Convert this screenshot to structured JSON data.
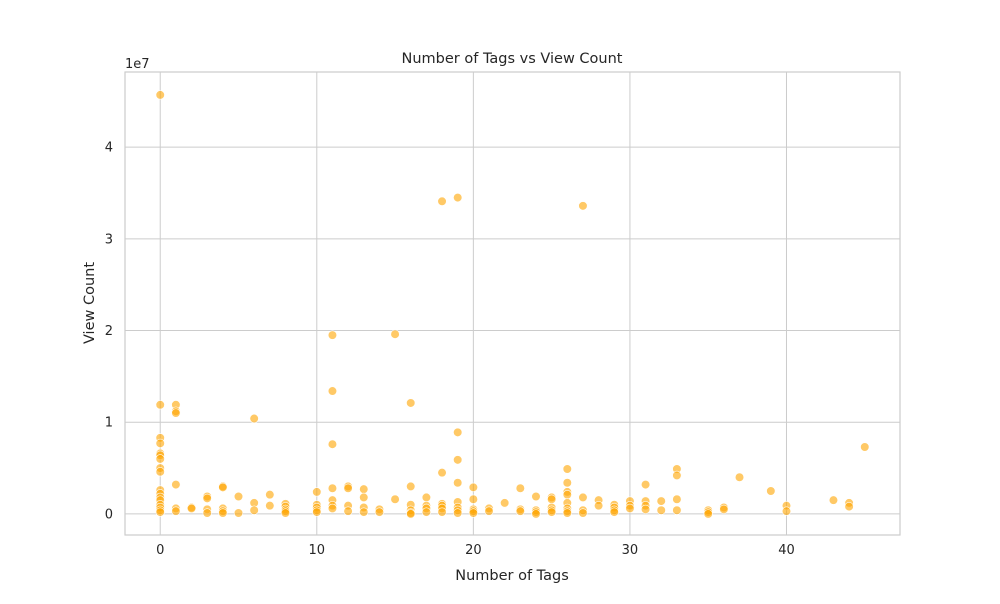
{
  "chart_data": {
    "type": "scatter",
    "title": "Number of Tags vs View Count",
    "xlabel": "Number of Tags",
    "ylabel": "View Count",
    "y_offset_text": "1e7",
    "xlim": [
      -2.25,
      47.25
    ],
    "ylim": [
      -2300000,
      48200000
    ],
    "x_ticks": [
      0,
      10,
      20,
      30,
      40
    ],
    "x_tick_labels": [
      "0",
      "10",
      "20",
      "30",
      "40"
    ],
    "y_ticks": [
      0,
      10000000,
      20000000,
      30000000,
      40000000
    ],
    "y_tick_labels": [
      "0",
      "1",
      "2",
      "3",
      "4"
    ],
    "grid": true,
    "legend": "none",
    "marker_color": "#ffa500",
    "points": [
      {
        "x": 0,
        "y": 45700000
      },
      {
        "x": 0,
        "y": 11900000
      },
      {
        "x": 0,
        "y": 8300000
      },
      {
        "x": 0,
        "y": 7700000
      },
      {
        "x": 0,
        "y": 6600000
      },
      {
        "x": 0,
        "y": 6400000
      },
      {
        "x": 0,
        "y": 6000000
      },
      {
        "x": 0,
        "y": 5000000
      },
      {
        "x": 0,
        "y": 4600000
      },
      {
        "x": 0,
        "y": 2600000
      },
      {
        "x": 0,
        "y": 2200000
      },
      {
        "x": 0,
        "y": 1800000
      },
      {
        "x": 0,
        "y": 1500000
      },
      {
        "x": 0,
        "y": 1000000
      },
      {
        "x": 0,
        "y": 700000
      },
      {
        "x": 0,
        "y": 400000
      },
      {
        "x": 0,
        "y": 200000
      },
      {
        "x": 1,
        "y": 11900000
      },
      {
        "x": 1,
        "y": 11200000
      },
      {
        "x": 1,
        "y": 11000000
      },
      {
        "x": 1,
        "y": 3200000
      },
      {
        "x": 1,
        "y": 600000
      },
      {
        "x": 1,
        "y": 300000
      },
      {
        "x": 2,
        "y": 700000
      },
      {
        "x": 2,
        "y": 600000
      },
      {
        "x": 3,
        "y": 1900000
      },
      {
        "x": 3,
        "y": 1700000
      },
      {
        "x": 3,
        "y": 500000
      },
      {
        "x": 3,
        "y": 100000
      },
      {
        "x": 4,
        "y": 3000000
      },
      {
        "x": 4,
        "y": 2900000
      },
      {
        "x": 4,
        "y": 600000
      },
      {
        "x": 4,
        "y": 300000
      },
      {
        "x": 4,
        "y": 100000
      },
      {
        "x": 5,
        "y": 1900000
      },
      {
        "x": 5,
        "y": 100000
      },
      {
        "x": 6,
        "y": 10400000
      },
      {
        "x": 6,
        "y": 1200000
      },
      {
        "x": 6,
        "y": 400000
      },
      {
        "x": 7,
        "y": 2100000
      },
      {
        "x": 7,
        "y": 900000
      },
      {
        "x": 8,
        "y": 1100000
      },
      {
        "x": 8,
        "y": 800000
      },
      {
        "x": 8,
        "y": 500000
      },
      {
        "x": 8,
        "y": 300000
      },
      {
        "x": 8,
        "y": 100000
      },
      {
        "x": 10,
        "y": 2400000
      },
      {
        "x": 10,
        "y": 1000000
      },
      {
        "x": 10,
        "y": 700000
      },
      {
        "x": 10,
        "y": 400000
      },
      {
        "x": 10,
        "y": 200000
      },
      {
        "x": 11,
        "y": 19500000
      },
      {
        "x": 11,
        "y": 13400000
      },
      {
        "x": 11,
        "y": 7600000
      },
      {
        "x": 11,
        "y": 2800000
      },
      {
        "x": 11,
        "y": 1500000
      },
      {
        "x": 11,
        "y": 900000
      },
      {
        "x": 11,
        "y": 600000
      },
      {
        "x": 12,
        "y": 3000000
      },
      {
        "x": 12,
        "y": 2800000
      },
      {
        "x": 12,
        "y": 900000
      },
      {
        "x": 12,
        "y": 300000
      },
      {
        "x": 13,
        "y": 2700000
      },
      {
        "x": 13,
        "y": 1800000
      },
      {
        "x": 13,
        "y": 700000
      },
      {
        "x": 13,
        "y": 200000
      },
      {
        "x": 14,
        "y": 500000
      },
      {
        "x": 14,
        "y": 200000
      },
      {
        "x": 15,
        "y": 19600000
      },
      {
        "x": 15,
        "y": 1600000
      },
      {
        "x": 16,
        "y": 12100000
      },
      {
        "x": 16,
        "y": 3000000
      },
      {
        "x": 16,
        "y": 1000000
      },
      {
        "x": 16,
        "y": 400000
      },
      {
        "x": 16,
        "y": 100000
      },
      {
        "x": 16,
        "y": 0
      },
      {
        "x": 17,
        "y": 1800000
      },
      {
        "x": 17,
        "y": 900000
      },
      {
        "x": 17,
        "y": 600000
      },
      {
        "x": 17,
        "y": 200000
      },
      {
        "x": 18,
        "y": 34100000
      },
      {
        "x": 18,
        "y": 4500000
      },
      {
        "x": 18,
        "y": 1100000
      },
      {
        "x": 18,
        "y": 900000
      },
      {
        "x": 18,
        "y": 600000
      },
      {
        "x": 18,
        "y": 200000
      },
      {
        "x": 19,
        "y": 34500000
      },
      {
        "x": 19,
        "y": 8900000
      },
      {
        "x": 19,
        "y": 5900000
      },
      {
        "x": 19,
        "y": 3400000
      },
      {
        "x": 19,
        "y": 1300000
      },
      {
        "x": 19,
        "y": 700000
      },
      {
        "x": 19,
        "y": 400000
      },
      {
        "x": 19,
        "y": 100000
      },
      {
        "x": 20,
        "y": 2900000
      },
      {
        "x": 20,
        "y": 1600000
      },
      {
        "x": 20,
        "y": 500000
      },
      {
        "x": 20,
        "y": 300000
      },
      {
        "x": 20,
        "y": 100000
      },
      {
        "x": 21,
        "y": 600000
      },
      {
        "x": 21,
        "y": 300000
      },
      {
        "x": 22,
        "y": 1200000
      },
      {
        "x": 23,
        "y": 2800000
      },
      {
        "x": 23,
        "y": 500000
      },
      {
        "x": 23,
        "y": 300000
      },
      {
        "x": 24,
        "y": 1900000
      },
      {
        "x": 24,
        "y": 400000
      },
      {
        "x": 24,
        "y": 200000
      },
      {
        "x": 24,
        "y": 0
      },
      {
        "x": 25,
        "y": 1800000
      },
      {
        "x": 25,
        "y": 1600000
      },
      {
        "x": 25,
        "y": 700000
      },
      {
        "x": 25,
        "y": 400000
      },
      {
        "x": 25,
        "y": 200000
      },
      {
        "x": 26,
        "y": 4900000
      },
      {
        "x": 26,
        "y": 3400000
      },
      {
        "x": 26,
        "y": 2400000
      },
      {
        "x": 26,
        "y": 2100000
      },
      {
        "x": 26,
        "y": 1200000
      },
      {
        "x": 26,
        "y": 600000
      },
      {
        "x": 26,
        "y": 300000
      },
      {
        "x": 26,
        "y": 100000
      },
      {
        "x": 27,
        "y": 33600000
      },
      {
        "x": 27,
        "y": 1800000
      },
      {
        "x": 27,
        "y": 400000
      },
      {
        "x": 27,
        "y": 100000
      },
      {
        "x": 28,
        "y": 1500000
      },
      {
        "x": 28,
        "y": 900000
      },
      {
        "x": 29,
        "y": 1000000
      },
      {
        "x": 29,
        "y": 700000
      },
      {
        "x": 29,
        "y": 400000
      },
      {
        "x": 29,
        "y": 200000
      },
      {
        "x": 30,
        "y": 1400000
      },
      {
        "x": 30,
        "y": 900000
      },
      {
        "x": 30,
        "y": 600000
      },
      {
        "x": 31,
        "y": 3200000
      },
      {
        "x": 31,
        "y": 1400000
      },
      {
        "x": 31,
        "y": 900000
      },
      {
        "x": 31,
        "y": 500000
      },
      {
        "x": 32,
        "y": 1400000
      },
      {
        "x": 32,
        "y": 400000
      },
      {
        "x": 33,
        "y": 4900000
      },
      {
        "x": 33,
        "y": 4200000
      },
      {
        "x": 33,
        "y": 1600000
      },
      {
        "x": 33,
        "y": 400000
      },
      {
        "x": 35,
        "y": 400000
      },
      {
        "x": 35,
        "y": 200000
      },
      {
        "x": 35,
        "y": 0
      },
      {
        "x": 36,
        "y": 700000
      },
      {
        "x": 36,
        "y": 500000
      },
      {
        "x": 37,
        "y": 4000000
      },
      {
        "x": 39,
        "y": 2500000
      },
      {
        "x": 40,
        "y": 900000
      },
      {
        "x": 40,
        "y": 300000
      },
      {
        "x": 43,
        "y": 1500000
      },
      {
        "x": 44,
        "y": 1200000
      },
      {
        "x": 44,
        "y": 800000
      },
      {
        "x": 45,
        "y": 7300000
      }
    ]
  }
}
